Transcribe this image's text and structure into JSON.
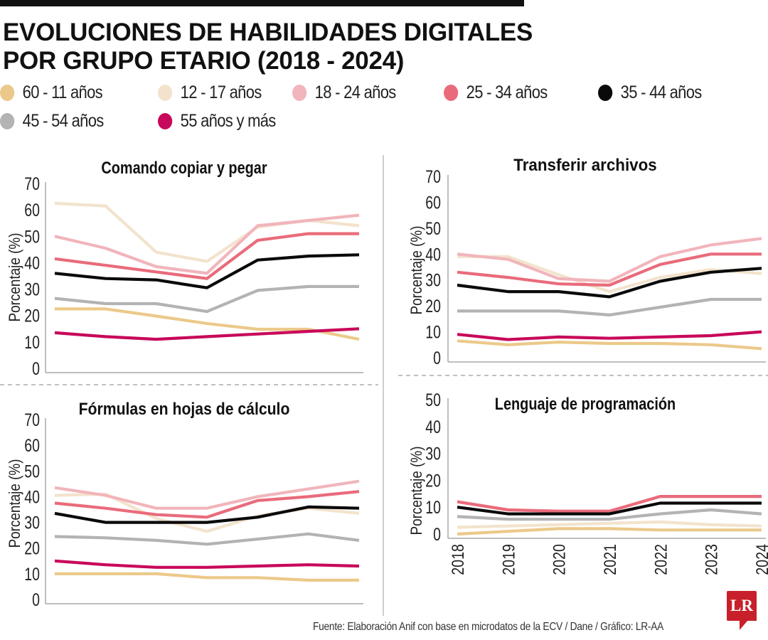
{
  "title_lines": [
    "EVOLUCIONES DE HABILIDADES DIGITALES",
    "POR GRUPO ETARIO (2018 - 2024)"
  ],
  "legend": [
    {
      "key": "g1",
      "label": "60 - 11 años",
      "color": "#ecc98a"
    },
    {
      "key": "g2",
      "label": "12 - 17 años",
      "color": "#f3e3cd"
    },
    {
      "key": "g3",
      "label": "18 - 24 años",
      "color": "#f1b5bb"
    },
    {
      "key": "g4",
      "label": "25 - 34 años",
      "color": "#e96b7b"
    },
    {
      "key": "g5",
      "label": "35 - 44 años",
      "color": "#0a0a0a"
    },
    {
      "key": "g6",
      "label": "45 - 54 años",
      "color": "#b3b3b3"
    },
    {
      "key": "g7",
      "label": "55 años y más",
      "color": "#c8085a"
    }
  ],
  "source": "Fuente: Elaboración Anif con base en microdatos de la ECV / Dane / Gráfico: LR-AA",
  "logo_text": "LR",
  "chart_data": [
    {
      "type": "line",
      "title": "Comando copiar y pegar",
      "xlabel": "",
      "ylabel": "Porcentaje (%)",
      "x": [
        2018,
        2019,
        2020,
        2021,
        2022,
        2023,
        2024
      ],
      "ylim": [
        0,
        70
      ],
      "yticks": [
        0,
        10,
        20,
        30,
        40,
        50,
        60,
        70
      ],
      "show_x_ticks": false,
      "grid": false,
      "series": [
        {
          "name": "60 - 11 años",
          "values": [
            22.5,
            22.5,
            19.8,
            17.0,
            14.8,
            14.8,
            11.0
          ]
        },
        {
          "name": "12 - 17 años",
          "values": [
            62.5,
            61.5,
            44.0,
            40.5,
            53.5,
            56.0,
            54.0
          ]
        },
        {
          "name": "18 - 24 años",
          "values": [
            50.0,
            45.5,
            38.5,
            36.0,
            54.0,
            56.0,
            58.0
          ]
        },
        {
          "name": "25 - 34 años",
          "values": [
            41.5,
            39.0,
            36.5,
            34.0,
            48.5,
            51.0,
            51.0
          ]
        },
        {
          "name": "35 - 44 años",
          "values": [
            36.0,
            34.0,
            33.5,
            30.5,
            41.0,
            42.5,
            43.0
          ]
        },
        {
          "name": "45 - 54 años",
          "values": [
            26.5,
            24.5,
            24.5,
            21.5,
            29.5,
            31.0,
            31.0
          ]
        },
        {
          "name": "55 años y más",
          "values": [
            13.5,
            12.0,
            11.0,
            12.0,
            13.0,
            14.0,
            15.0
          ]
        }
      ]
    },
    {
      "type": "line",
      "title": "Transferir archivos",
      "xlabel": "",
      "ylabel": "Porcentaje (%)",
      "x": [
        2018,
        2019,
        2020,
        2021,
        2022,
        2023,
        2024
      ],
      "ylim": [
        0,
        70
      ],
      "yticks": [
        0,
        10,
        20,
        30,
        40,
        50,
        60,
        70
      ],
      "show_x_ticks": false,
      "grid": false,
      "series": [
        {
          "name": "60 - 11 años",
          "values": [
            6.5,
            5.0,
            6.0,
            5.5,
            5.5,
            5.0,
            3.5
          ]
        },
        {
          "name": "12 - 17 años",
          "values": [
            39.0,
            39.0,
            32.0,
            25.5,
            31.0,
            34.0,
            32.5
          ]
        },
        {
          "name": "18 - 24 años",
          "values": [
            40.0,
            38.0,
            30.5,
            29.5,
            39.0,
            43.5,
            46.0
          ]
        },
        {
          "name": "25 - 34 años",
          "values": [
            33.0,
            31.0,
            28.5,
            28.0,
            36.0,
            40.0,
            40.0
          ]
        },
        {
          "name": "35 - 44 años",
          "values": [
            28.0,
            25.5,
            25.5,
            23.5,
            29.5,
            33.0,
            34.5
          ]
        },
        {
          "name": "45 - 54 años",
          "values": [
            18.0,
            18.0,
            18.0,
            16.5,
            19.5,
            22.5,
            22.5
          ]
        },
        {
          "name": "55 años y más",
          "values": [
            9.0,
            7.0,
            8.0,
            7.5,
            8.0,
            8.5,
            10.0
          ]
        }
      ]
    },
    {
      "type": "line",
      "title": "Fórmulas en hojas de cálculo",
      "xlabel": "",
      "ylabel": "Porcentaje (%)",
      "x": [
        2018,
        2019,
        2020,
        2021,
        2022,
        2023,
        2024
      ],
      "ylim": [
        0,
        70
      ],
      "yticks": [
        0,
        10,
        20,
        30,
        40,
        50,
        60,
        70
      ],
      "show_x_ticks": false,
      "grid": false,
      "series": [
        {
          "name": "60 - 11 años",
          "values": [
            10.0,
            10.0,
            10.0,
            8.5,
            8.5,
            7.5,
            7.5
          ]
        },
        {
          "name": "12 - 17 años",
          "values": [
            40.5,
            41.0,
            31.5,
            26.5,
            32.5,
            35.5,
            33.5
          ]
        },
        {
          "name": "18 - 24 años",
          "values": [
            43.5,
            40.5,
            35.5,
            35.5,
            40.0,
            43.0,
            46.0
          ]
        },
        {
          "name": "25 - 34 años",
          "values": [
            37.5,
            35.5,
            33.0,
            32.0,
            38.5,
            40.0,
            42.0
          ]
        },
        {
          "name": "35 - 44 años",
          "values": [
            33.5,
            30.0,
            30.0,
            30.0,
            32.0,
            36.0,
            35.5
          ]
        },
        {
          "name": "45 - 54 años",
          "values": [
            24.5,
            24.0,
            23.0,
            21.5,
            23.5,
            25.5,
            23.0
          ]
        },
        {
          "name": "55 años y más",
          "values": [
            15.0,
            13.5,
            12.5,
            12.5,
            13.0,
            13.5,
            13.0
          ]
        }
      ]
    },
    {
      "type": "line",
      "title": "Lenguaje de programación",
      "xlabel": "",
      "ylabel": "Porcentaje (%)",
      "x": [
        2018,
        2019,
        2020,
        2021,
        2022,
        2023,
        2024
      ],
      "ylim": [
        0,
        50
      ],
      "yticks": [
        0,
        10,
        20,
        30,
        40,
        50
      ],
      "show_x_ticks": true,
      "grid": false,
      "series": [
        {
          "name": "60 - 11 años",
          "values": [
            0.0,
            1.0,
            2.0,
            2.0,
            1.5,
            1.5,
            1.5
          ]
        },
        {
          "name": "12 - 17 años",
          "values": [
            2.5,
            3.0,
            3.5,
            4.0,
            4.5,
            3.5,
            3.0
          ]
        },
        {
          "name": "18 - 24 años",
          "values": [
            12.0,
            9.0,
            8.5,
            8.5,
            14.0,
            14.0,
            14.0
          ]
        },
        {
          "name": "25 - 34 años",
          "values": [
            12.0,
            9.0,
            8.5,
            8.5,
            14.0,
            14.0,
            14.0
          ]
        },
        {
          "name": "35 - 44 años",
          "values": [
            10.0,
            7.5,
            7.5,
            7.5,
            11.5,
            11.5,
            11.5
          ]
        },
        {
          "name": "45 - 54 años",
          "values": [
            6.5,
            5.5,
            5.5,
            5.5,
            7.5,
            9.0,
            7.5
          ]
        },
        {
          "name": "55 años y más",
          "values": [
            null,
            null,
            null,
            null,
            null,
            null,
            null
          ]
        }
      ]
    }
  ]
}
